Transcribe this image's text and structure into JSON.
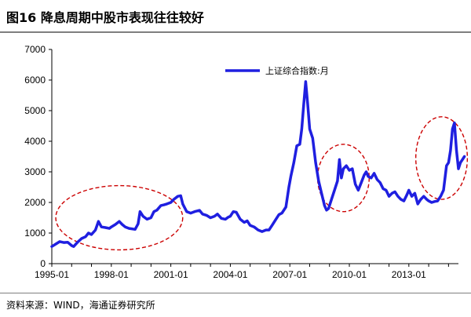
{
  "title": "图16 降息周期中股市表现往往较好",
  "source": "资料来源：WIND，海通证券研究所",
  "chart_data": {
    "type": "line",
    "title": "图16 降息周期中股市表现往往较好",
    "xlabel": "",
    "ylabel": "",
    "x_start": 1995.0,
    "x_end": 2015.5,
    "xticks": [
      "1995-01",
      "1998-01",
      "2001-01",
      "2004-01",
      "2007-01",
      "2010-01",
      "2013-01"
    ],
    "ylim": [
      0,
      7000
    ],
    "yticks": [
      "0",
      "1000",
      "2000",
      "3000",
      "4000",
      "5000",
      "6000",
      "7000"
    ],
    "grid": false,
    "legend_position": "top-center",
    "line_color": "#1f1fe0",
    "highlight_color": "#cc0000",
    "series": [
      {
        "name": "上证综合指数:月",
        "points": [
          [
            1995.0,
            560
          ],
          [
            1995.2,
            640
          ],
          [
            1995.4,
            720
          ],
          [
            1995.6,
            690
          ],
          [
            1995.8,
            700
          ],
          [
            1996.0,
            590
          ],
          [
            1996.1,
            560
          ],
          [
            1996.3,
            700
          ],
          [
            1996.5,
            820
          ],
          [
            1996.7,
            880
          ],
          [
            1996.85,
            1000
          ],
          [
            1997.0,
            950
          ],
          [
            1997.2,
            1100
          ],
          [
            1997.35,
            1380
          ],
          [
            1997.5,
            1200
          ],
          [
            1997.7,
            1180
          ],
          [
            1997.9,
            1150
          ],
          [
            1998.0,
            1200
          ],
          [
            1998.2,
            1280
          ],
          [
            1998.4,
            1380
          ],
          [
            1998.55,
            1280
          ],
          [
            1998.7,
            1200
          ],
          [
            1998.9,
            1150
          ],
          [
            1999.0,
            1140
          ],
          [
            1999.2,
            1120
          ],
          [
            1999.35,
            1300
          ],
          [
            1999.45,
            1700
          ],
          [
            1999.6,
            1550
          ],
          [
            1999.8,
            1450
          ],
          [
            2000.0,
            1500
          ],
          [
            2000.15,
            1700
          ],
          [
            2000.3,
            1750
          ],
          [
            2000.5,
            1900
          ],
          [
            2000.65,
            1920
          ],
          [
            2000.8,
            1950
          ],
          [
            2001.0,
            2000
          ],
          [
            2001.15,
            2100
          ],
          [
            2001.35,
            2200
          ],
          [
            2001.5,
            2220
          ],
          [
            2001.6,
            1950
          ],
          [
            2001.8,
            1700
          ],
          [
            2002.0,
            1650
          ],
          [
            2002.2,
            1700
          ],
          [
            2002.45,
            1740
          ],
          [
            2002.6,
            1620
          ],
          [
            2002.8,
            1580
          ],
          [
            2003.0,
            1500
          ],
          [
            2003.2,
            1550
          ],
          [
            2003.35,
            1620
          ],
          [
            2003.55,
            1480
          ],
          [
            2003.75,
            1450
          ],
          [
            2003.9,
            1520
          ],
          [
            2004.0,
            1550
          ],
          [
            2004.15,
            1700
          ],
          [
            2004.3,
            1680
          ],
          [
            2004.5,
            1450
          ],
          [
            2004.7,
            1350
          ],
          [
            2004.85,
            1400
          ],
          [
            2005.0,
            1250
          ],
          [
            2005.2,
            1200
          ],
          [
            2005.4,
            1100
          ],
          [
            2005.6,
            1050
          ],
          [
            2005.8,
            1100
          ],
          [
            2005.95,
            1100
          ],
          [
            2006.1,
            1250
          ],
          [
            2006.3,
            1450
          ],
          [
            2006.45,
            1600
          ],
          [
            2006.6,
            1650
          ],
          [
            2006.8,
            1850
          ],
          [
            2006.95,
            2500
          ],
          [
            2007.05,
            2850
          ],
          [
            2007.2,
            3300
          ],
          [
            2007.35,
            3850
          ],
          [
            2007.5,
            3900
          ],
          [
            2007.6,
            4400
          ],
          [
            2007.7,
            5200
          ],
          [
            2007.8,
            5950
          ],
          [
            2007.9,
            5200
          ],
          [
            2008.0,
            4400
          ],
          [
            2008.15,
            4100
          ],
          [
            2008.3,
            3300
          ],
          [
            2008.45,
            2700
          ],
          [
            2008.6,
            2300
          ],
          [
            2008.75,
            1900
          ],
          [
            2008.85,
            1750
          ],
          [
            2008.95,
            1800
          ],
          [
            2009.1,
            2100
          ],
          [
            2009.25,
            2400
          ],
          [
            2009.4,
            2700
          ],
          [
            2009.5,
            3400
          ],
          [
            2009.6,
            2800
          ],
          [
            2009.7,
            3100
          ],
          [
            2009.85,
            3200
          ],
          [
            2010.0,
            3050
          ],
          [
            2010.15,
            3100
          ],
          [
            2010.3,
            2600
          ],
          [
            2010.45,
            2400
          ],
          [
            2010.6,
            2650
          ],
          [
            2010.75,
            2900
          ],
          [
            2010.85,
            3000
          ],
          [
            2010.95,
            2850
          ],
          [
            2011.1,
            2800
          ],
          [
            2011.25,
            2950
          ],
          [
            2011.4,
            2750
          ],
          [
            2011.55,
            2650
          ],
          [
            2011.7,
            2450
          ],
          [
            2011.85,
            2400
          ],
          [
            2012.0,
            2200
          ],
          [
            2012.15,
            2300
          ],
          [
            2012.3,
            2350
          ],
          [
            2012.45,
            2200
          ],
          [
            2012.6,
            2100
          ],
          [
            2012.75,
            2050
          ],
          [
            2012.9,
            2250
          ],
          [
            2013.0,
            2400
          ],
          [
            2013.15,
            2200
          ],
          [
            2013.3,
            2300
          ],
          [
            2013.45,
            1950
          ],
          [
            2013.6,
            2100
          ],
          [
            2013.75,
            2200
          ],
          [
            2013.9,
            2100
          ],
          [
            2014.0,
            2050
          ],
          [
            2014.15,
            2000
          ],
          [
            2014.3,
            2030
          ],
          [
            2014.45,
            2050
          ],
          [
            2014.6,
            2200
          ],
          [
            2014.75,
            2400
          ],
          [
            2014.9,
            3200
          ],
          [
            2015.0,
            3300
          ],
          [
            2015.1,
            3700
          ],
          [
            2015.2,
            4400
          ],
          [
            2015.3,
            4600
          ],
          [
            2015.4,
            3700
          ],
          [
            2015.5,
            3100
          ],
          [
            2015.6,
            3300
          ],
          [
            2015.7,
            3400
          ],
          [
            2015.8,
            3500
          ]
        ]
      }
    ],
    "highlighted_periods": [
      {
        "cx": 1998.4,
        "cy": 1500,
        "rx": 3.2,
        "ry": 1050
      },
      {
        "cx": 2009.7,
        "cy": 2800,
        "rx": 1.3,
        "ry": 1100
      },
      {
        "cx": 2014.65,
        "cy": 3450,
        "rx": 1.3,
        "ry": 1350
      }
    ]
  }
}
